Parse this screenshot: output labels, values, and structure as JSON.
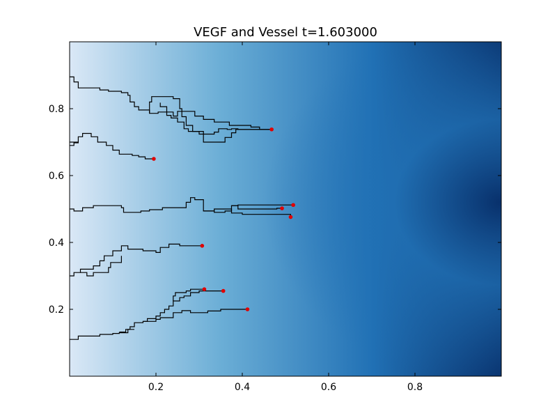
{
  "chart_data": {
    "type": "heatmap",
    "title": "VEGF and Vessel t=1.603000",
    "xlabel": "",
    "ylabel": "",
    "xlim": [
      0.0,
      1.0
    ],
    "ylim": [
      0.0,
      1.0
    ],
    "xticks": [
      {
        "value": 0.2,
        "label": "0.2"
      },
      {
        "value": 0.4,
        "label": "0.4"
      },
      {
        "value": 0.6,
        "label": "0.6"
      },
      {
        "value": 0.8,
        "label": "0.8"
      }
    ],
    "yticks": [
      {
        "value": 0.2,
        "label": "0.2"
      },
      {
        "value": 0.4,
        "label": "0.4"
      },
      {
        "value": 0.6,
        "label": "0.6"
      },
      {
        "value": 0.8,
        "label": "0.8"
      }
    ],
    "grid": false,
    "heatmap": {
      "colormap": "Blues",
      "description": "concentration increases from left (light) to right, peaking near x=1.0, y=0.52",
      "peak": {
        "x": 1.0,
        "y": 0.52
      },
      "colors": {
        "low": "#dae8f6",
        "mid": "#6baed6",
        "high": "#2171b5",
        "max": "#08306b"
      }
    },
    "vessel_color": "#000000",
    "tip_color": "#e00000",
    "vessels": [
      {
        "points": [
          [
            0.0,
            0.895
          ],
          [
            0.01,
            0.895
          ],
          [
            0.01,
            0.88
          ],
          [
            0.02,
            0.88
          ],
          [
            0.02,
            0.862
          ],
          [
            0.07,
            0.862
          ],
          [
            0.07,
            0.856
          ],
          [
            0.09,
            0.856
          ],
          [
            0.09,
            0.852
          ],
          [
            0.12,
            0.852
          ],
          [
            0.12,
            0.848
          ],
          [
            0.135,
            0.848
          ],
          [
            0.135,
            0.84
          ],
          [
            0.14,
            0.84
          ],
          [
            0.14,
            0.82
          ],
          [
            0.15,
            0.82
          ],
          [
            0.15,
            0.806
          ],
          [
            0.16,
            0.806
          ],
          [
            0.16,
            0.796
          ],
          [
            0.185,
            0.796
          ],
          [
            0.185,
            0.786
          ],
          [
            0.205,
            0.786
          ],
          [
            0.205,
            0.79
          ],
          [
            0.225,
            0.79
          ],
          [
            0.225,
            0.78
          ],
          [
            0.235,
            0.78
          ],
          [
            0.235,
            0.772
          ],
          [
            0.25,
            0.772
          ],
          [
            0.25,
            0.76
          ],
          [
            0.265,
            0.76
          ],
          [
            0.265,
            0.74
          ],
          [
            0.275,
            0.74
          ],
          [
            0.275,
            0.732
          ],
          [
            0.3,
            0.732
          ],
          [
            0.3,
            0.724
          ],
          [
            0.335,
            0.724
          ],
          [
            0.335,
            0.73
          ],
          [
            0.345,
            0.73
          ],
          [
            0.345,
            0.74
          ],
          [
            0.365,
            0.74
          ],
          [
            0.365,
            0.738
          ],
          [
            0.375,
            0.738
          ],
          [
            0.375,
            0.74
          ],
          [
            0.39,
            0.74
          ],
          [
            0.39,
            0.738
          ],
          [
            0.468,
            0.738
          ]
        ]
      },
      {
        "points": [
          [
            0.185,
            0.786
          ],
          [
            0.185,
            0.82
          ],
          [
            0.19,
            0.82
          ],
          [
            0.19,
            0.836
          ],
          [
            0.24,
            0.836
          ],
          [
            0.24,
            0.83
          ],
          [
            0.255,
            0.83
          ],
          [
            0.255,
            0.8
          ],
          [
            0.26,
            0.8
          ],
          [
            0.26,
            0.776
          ],
          [
            0.27,
            0.776
          ],
          [
            0.27,
            0.75
          ],
          [
            0.285,
            0.75
          ],
          [
            0.285,
            0.732
          ],
          [
            0.31,
            0.732
          ],
          [
            0.31,
            0.7
          ],
          [
            0.36,
            0.7
          ],
          [
            0.36,
            0.714
          ],
          [
            0.375,
            0.714
          ],
          [
            0.375,
            0.728
          ],
          [
            0.385,
            0.728
          ],
          [
            0.385,
            0.738
          ],
          [
            0.468,
            0.738
          ]
        ]
      },
      {
        "points": [
          [
            0.21,
            0.818
          ],
          [
            0.21,
            0.806
          ],
          [
            0.225,
            0.806
          ],
          [
            0.225,
            0.79
          ],
          [
            0.24,
            0.79
          ],
          [
            0.24,
            0.778
          ],
          [
            0.25,
            0.778
          ],
          [
            0.25,
            0.792
          ],
          [
            0.29,
            0.792
          ],
          [
            0.29,
            0.778
          ],
          [
            0.31,
            0.778
          ],
          [
            0.31,
            0.768
          ],
          [
            0.335,
            0.768
          ],
          [
            0.335,
            0.76
          ],
          [
            0.37,
            0.76
          ],
          [
            0.37,
            0.75
          ],
          [
            0.42,
            0.75
          ],
          [
            0.42,
            0.745
          ],
          [
            0.44,
            0.745
          ],
          [
            0.44,
            0.738
          ],
          [
            0.468,
            0.738
          ]
        ]
      },
      {
        "points": [
          [
            0.0,
            0.7
          ],
          [
            0.02,
            0.7
          ],
          [
            0.02,
            0.716
          ],
          [
            0.03,
            0.716
          ],
          [
            0.03,
            0.726
          ],
          [
            0.05,
            0.726
          ],
          [
            0.05,
            0.716
          ],
          [
            0.065,
            0.716
          ],
          [
            0.065,
            0.7
          ],
          [
            0.085,
            0.7
          ],
          [
            0.085,
            0.69
          ],
          [
            0.1,
            0.69
          ],
          [
            0.1,
            0.68
          ],
          [
            0.1,
            0.676
          ],
          [
            0.115,
            0.676
          ],
          [
            0.115,
            0.664
          ],
          [
            0.145,
            0.664
          ],
          [
            0.145,
            0.66
          ],
          [
            0.16,
            0.66
          ],
          [
            0.16,
            0.656
          ],
          [
            0.175,
            0.656
          ],
          [
            0.175,
            0.65
          ],
          [
            0.195,
            0.65
          ]
        ]
      },
      {
        "points": [
          [
            0.0,
            0.69
          ],
          [
            0.01,
            0.69
          ],
          [
            0.01,
            0.698
          ],
          [
            0.02,
            0.698
          ],
          [
            0.02,
            0.7
          ]
        ]
      },
      {
        "points": [
          [
            0.0,
            0.5
          ],
          [
            0.01,
            0.5
          ],
          [
            0.01,
            0.494
          ],
          [
            0.03,
            0.494
          ],
          [
            0.03,
            0.504
          ],
          [
            0.055,
            0.504
          ],
          [
            0.055,
            0.51
          ],
          [
            0.12,
            0.51
          ],
          [
            0.12,
            0.504
          ],
          [
            0.125,
            0.504
          ],
          [
            0.125,
            0.49
          ],
          [
            0.165,
            0.49
          ],
          [
            0.165,
            0.494
          ],
          [
            0.185,
            0.494
          ],
          [
            0.185,
            0.498
          ],
          [
            0.215,
            0.498
          ],
          [
            0.215,
            0.504
          ],
          [
            0.27,
            0.504
          ],
          [
            0.27,
            0.52
          ],
          [
            0.28,
            0.52
          ],
          [
            0.28,
            0.534
          ],
          [
            0.29,
            0.534
          ],
          [
            0.29,
            0.528
          ],
          [
            0.31,
            0.528
          ],
          [
            0.31,
            0.494
          ],
          [
            0.335,
            0.494
          ],
          [
            0.335,
            0.5
          ],
          [
            0.375,
            0.5
          ],
          [
            0.375,
            0.488
          ],
          [
            0.4,
            0.488
          ],
          [
            0.4,
            0.484
          ],
          [
            0.512,
            0.484
          ],
          [
            0.512,
            0.476
          ]
        ]
      },
      {
        "points": [
          [
            0.31,
            0.494
          ],
          [
            0.335,
            0.494
          ],
          [
            0.335,
            0.49
          ],
          [
            0.36,
            0.49
          ],
          [
            0.36,
            0.494
          ],
          [
            0.375,
            0.494
          ],
          [
            0.375,
            0.51
          ],
          [
            0.39,
            0.51
          ],
          [
            0.39,
            0.512
          ],
          [
            0.518,
            0.512
          ]
        ]
      },
      {
        "points": [
          [
            0.375,
            0.51
          ],
          [
            0.39,
            0.51
          ],
          [
            0.39,
            0.5
          ],
          [
            0.48,
            0.5
          ],
          [
            0.48,
            0.502
          ],
          [
            0.492,
            0.502
          ]
        ]
      },
      {
        "points": [
          [
            0.0,
            0.3
          ],
          [
            0.01,
            0.3
          ],
          [
            0.01,
            0.31
          ],
          [
            0.025,
            0.31
          ],
          [
            0.025,
            0.32
          ],
          [
            0.055,
            0.32
          ],
          [
            0.055,
            0.33
          ],
          [
            0.07,
            0.33
          ],
          [
            0.07,
            0.345
          ],
          [
            0.08,
            0.345
          ],
          [
            0.08,
            0.36
          ],
          [
            0.1,
            0.36
          ],
          [
            0.1,
            0.375
          ],
          [
            0.12,
            0.375
          ],
          [
            0.12,
            0.39
          ],
          [
            0.135,
            0.39
          ],
          [
            0.135,
            0.38
          ],
          [
            0.17,
            0.38
          ],
          [
            0.17,
            0.375
          ],
          [
            0.2,
            0.375
          ],
          [
            0.2,
            0.37
          ],
          [
            0.21,
            0.37
          ],
          [
            0.21,
            0.385
          ],
          [
            0.23,
            0.385
          ],
          [
            0.23,
            0.395
          ],
          [
            0.255,
            0.395
          ],
          [
            0.255,
            0.39
          ],
          [
            0.307,
            0.39
          ]
        ]
      },
      {
        "points": [
          [
            0.025,
            0.31
          ],
          [
            0.04,
            0.31
          ],
          [
            0.04,
            0.3
          ],
          [
            0.055,
            0.3
          ],
          [
            0.055,
            0.31
          ],
          [
            0.09,
            0.31
          ],
          [
            0.09,
            0.325
          ],
          [
            0.095,
            0.325
          ],
          [
            0.095,
            0.34
          ],
          [
            0.12,
            0.34
          ],
          [
            0.12,
            0.36
          ]
        ]
      },
      {
        "points": [
          [
            0.0,
            0.11
          ],
          [
            0.02,
            0.11
          ],
          [
            0.02,
            0.12
          ],
          [
            0.07,
            0.12
          ],
          [
            0.07,
            0.125
          ],
          [
            0.1,
            0.125
          ],
          [
            0.1,
            0.128
          ],
          [
            0.115,
            0.128
          ],
          [
            0.115,
            0.13
          ],
          [
            0.135,
            0.13
          ],
          [
            0.135,
            0.14
          ],
          [
            0.14,
            0.14
          ],
          [
            0.14,
            0.148
          ],
          [
            0.15,
            0.148
          ],
          [
            0.15,
            0.16
          ],
          [
            0.17,
            0.16
          ],
          [
            0.17,
            0.164
          ],
          [
            0.2,
            0.164
          ],
          [
            0.2,
            0.17
          ],
          [
            0.21,
            0.17
          ],
          [
            0.21,
            0.175
          ],
          [
            0.24,
            0.175
          ],
          [
            0.24,
            0.19
          ],
          [
            0.26,
            0.19
          ],
          [
            0.26,
            0.196
          ],
          [
            0.28,
            0.196
          ],
          [
            0.28,
            0.19
          ],
          [
            0.32,
            0.19
          ],
          [
            0.32,
            0.195
          ],
          [
            0.35,
            0.195
          ],
          [
            0.35,
            0.2
          ],
          [
            0.412,
            0.2
          ]
        ]
      },
      {
        "points": [
          [
            0.17,
            0.164
          ],
          [
            0.18,
            0.164
          ],
          [
            0.18,
            0.172
          ],
          [
            0.2,
            0.172
          ],
          [
            0.2,
            0.18
          ],
          [
            0.21,
            0.18
          ],
          [
            0.21,
            0.19
          ],
          [
            0.22,
            0.19
          ],
          [
            0.22,
            0.2
          ],
          [
            0.23,
            0.2
          ],
          [
            0.23,
            0.21
          ],
          [
            0.24,
            0.21
          ],
          [
            0.24,
            0.225
          ],
          [
            0.255,
            0.225
          ],
          [
            0.255,
            0.235
          ],
          [
            0.265,
            0.235
          ],
          [
            0.265,
            0.24
          ],
          [
            0.28,
            0.24
          ],
          [
            0.28,
            0.25
          ],
          [
            0.3,
            0.25
          ],
          [
            0.3,
            0.255
          ],
          [
            0.356,
            0.255
          ]
        ]
      },
      {
        "points": [
          [
            0.24,
            0.225
          ],
          [
            0.24,
            0.24
          ],
          [
            0.245,
            0.24
          ],
          [
            0.245,
            0.25
          ],
          [
            0.27,
            0.25
          ],
          [
            0.27,
            0.255
          ],
          [
            0.28,
            0.255
          ],
          [
            0.28,
            0.26
          ],
          [
            0.312,
            0.26
          ]
        ]
      },
      {
        "points": [
          [
            0.15,
            0.14
          ],
          [
            0.13,
            0.14
          ],
          [
            0.13,
            0.132
          ],
          [
            0.115,
            0.132
          ]
        ]
      }
    ],
    "tips": [
      {
        "x": 0.468,
        "y": 0.738
      },
      {
        "x": 0.195,
        "y": 0.65
      },
      {
        "x": 0.518,
        "y": 0.512
      },
      {
        "x": 0.492,
        "y": 0.502
      },
      {
        "x": 0.512,
        "y": 0.476
      },
      {
        "x": 0.307,
        "y": 0.39
      },
      {
        "x": 0.312,
        "y": 0.26
      },
      {
        "x": 0.356,
        "y": 0.255
      },
      {
        "x": 0.412,
        "y": 0.2
      }
    ]
  }
}
